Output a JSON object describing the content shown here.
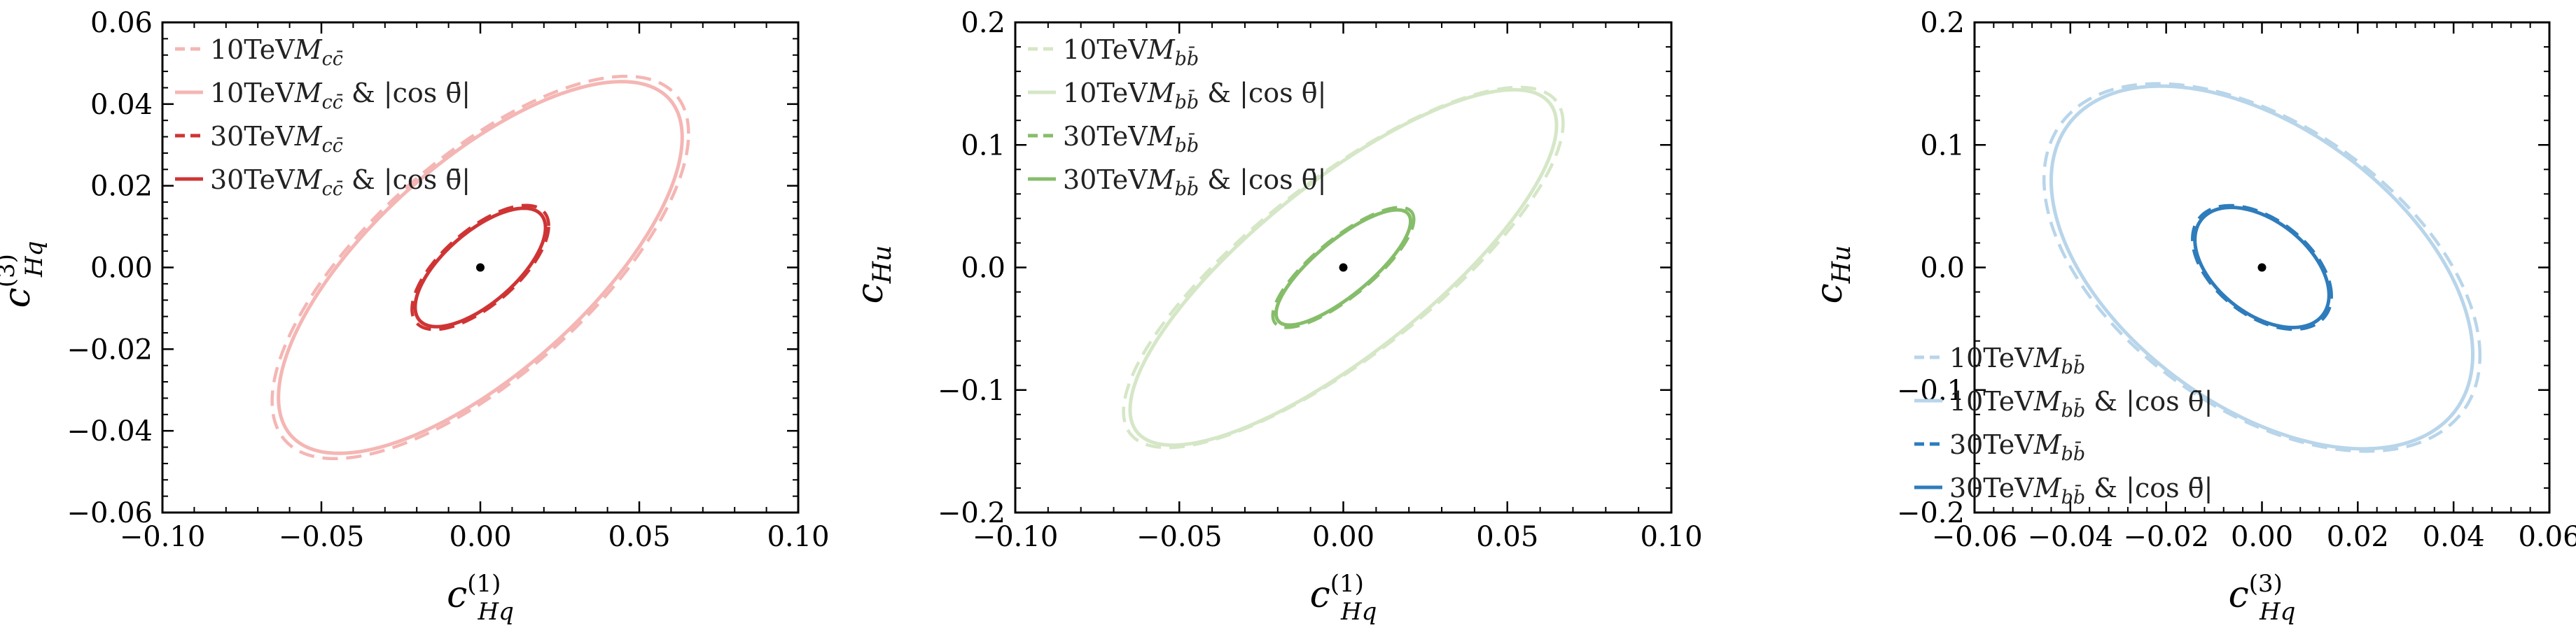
{
  "chart_data": [
    {
      "type": "line",
      "title": "",
      "xlabel": "c_{Hq}^{(1)}",
      "ylabel": "c_{Hq}^{(3)}",
      "xlim": [
        -0.1,
        0.1
      ],
      "ylim": [
        -0.06,
        0.06
      ],
      "x_ticks": [
        -0.1,
        -0.05,
        0.0,
        0.05,
        0.1
      ],
      "y_ticks": [
        -0.06,
        -0.04,
        -0.02,
        0.0,
        0.02,
        0.04,
        0.06
      ],
      "x_tick_labels": [
        "−0.10",
        "−0.05",
        "0.00",
        "0.05",
        "0.10"
      ],
      "y_tick_labels": [
        "−0.06",
        "−0.04",
        "−0.02",
        "0.00",
        "0.02",
        "0.04",
        "0.06"
      ],
      "legend_position": "top-left",
      "grid": false,
      "center_point": [
        0,
        0
      ],
      "series": [
        {
          "name": "10TeV M_{cc̄}",
          "color": "#f4b6b4",
          "dash": true,
          "ellipse": {
            "cx": 0,
            "cy": 0,
            "x_max": 0.0655,
            "y_max": 0.0468,
            "rho": 0.7
          }
        },
        {
          "name": "10TeV M_{cc̄} & |cos θ̄|",
          "color": "#f4b6b4",
          "dash": false,
          "ellipse": {
            "cx": 0,
            "cy": 0,
            "x_max": 0.0635,
            "y_max": 0.0455,
            "rho": 0.7
          }
        },
        {
          "name": "30TeV M_{cc̄}",
          "color": "#cf3434",
          "dash": true,
          "ellipse": {
            "cx": 0,
            "cy": 0,
            "x_max": 0.0215,
            "y_max": 0.0152,
            "rho": 0.67
          }
        },
        {
          "name": "30TeV M_{cc̄} & |cos θ̄|",
          "color": "#cf3434",
          "dash": false,
          "ellipse": {
            "cx": 0,
            "cy": 0,
            "x_max": 0.0205,
            "y_max": 0.0145,
            "rho": 0.67
          }
        }
      ]
    },
    {
      "type": "line",
      "title": "",
      "xlabel": "c_{Hq}^{(1)}",
      "ylabel": "c_{Hu}",
      "xlim": [
        -0.1,
        0.1
      ],
      "ylim": [
        -0.2,
        0.2
      ],
      "x_ticks": [
        -0.1,
        -0.05,
        0.0,
        0.05,
        0.1
      ],
      "y_ticks": [
        -0.2,
        -0.1,
        0.0,
        0.1,
        0.2
      ],
      "x_tick_labels": [
        "−0.10",
        "−0.05",
        "0.00",
        "0.05",
        "0.10"
      ],
      "y_tick_labels": [
        "−0.2",
        "−0.1",
        "0.0",
        "0.1",
        "0.2"
      ],
      "legend_position": "top-left",
      "grid": false,
      "center_point": [
        0,
        0
      ],
      "series": [
        {
          "name": "10TeV M_{bb̄}",
          "color": "#d5e7c6",
          "dash": true,
          "ellipse": {
            "cx": 0,
            "cy": 0,
            "x_max": 0.067,
            "y_max": 0.147,
            "rho": 0.8
          }
        },
        {
          "name": "10TeV M_{bb̄} & |cos θ̄|",
          "color": "#d5e7c6",
          "dash": false,
          "ellipse": {
            "cx": 0,
            "cy": 0,
            "x_max": 0.065,
            "y_max": 0.145,
            "rho": 0.8
          }
        },
        {
          "name": "30TeV M_{bb̄}",
          "color": "#86bd6a",
          "dash": true,
          "ellipse": {
            "cx": 0,
            "cy": 0,
            "x_max": 0.0215,
            "y_max": 0.049,
            "rho": 0.8
          }
        },
        {
          "name": "30TeV M_{bb̄} & |cos θ̄|",
          "color": "#86bd6a",
          "dash": false,
          "ellipse": {
            "cx": 0,
            "cy": 0,
            "x_max": 0.0205,
            "y_max": 0.047,
            "rho": 0.8
          }
        }
      ]
    },
    {
      "type": "line",
      "title": "",
      "xlabel": "c_{Hq}^{(3)}",
      "ylabel": "c_{Hu}",
      "xlim": [
        -0.06,
        0.06
      ],
      "ylim": [
        -0.2,
        0.2
      ],
      "x_ticks": [
        -0.06,
        -0.04,
        -0.02,
        0.0,
        0.02,
        0.04,
        0.06
      ],
      "y_ticks": [
        -0.2,
        -0.1,
        0.0,
        0.1,
        0.2
      ],
      "x_tick_labels": [
        "−0.06",
        "−0.04",
        "−0.02",
        "0.00",
        "0.02",
        "0.04",
        "0.06"
      ],
      "y_tick_labels": [
        "−0.2",
        "−0.1",
        "0.0",
        "0.1",
        "0.2"
      ],
      "legend_position": "bottom-left",
      "grid": false,
      "center_point": [
        0,
        0
      ],
      "series": [
        {
          "name": "10TeV M_{bb̄}",
          "color": "#b8d5ea",
          "dash": true,
          "ellipse": {
            "cx": 0,
            "cy": 0,
            "x_max": 0.0455,
            "y_max": 0.15,
            "rho": -0.48
          }
        },
        {
          "name": "10TeV M_{bb̄} & |cos θ̄|",
          "color": "#b8d5ea",
          "dash": false,
          "ellipse": {
            "cx": 0,
            "cy": 0,
            "x_max": 0.044,
            "y_max": 0.148,
            "rho": -0.48
          }
        },
        {
          "name": "30TeV M_{bb̄}",
          "color": "#2e7cbc",
          "dash": true,
          "ellipse": {
            "cx": 0,
            "cy": 0,
            "x_max": 0.0145,
            "y_max": 0.0505,
            "rho": -0.46
          }
        },
        {
          "name": "30TeV M_{bb̄} & |cos θ̄|",
          "color": "#2e7cbc",
          "dash": false,
          "ellipse": {
            "cx": 0,
            "cy": 0,
            "x_max": 0.014,
            "y_max": 0.049,
            "rho": -0.46
          }
        }
      ]
    }
  ]
}
